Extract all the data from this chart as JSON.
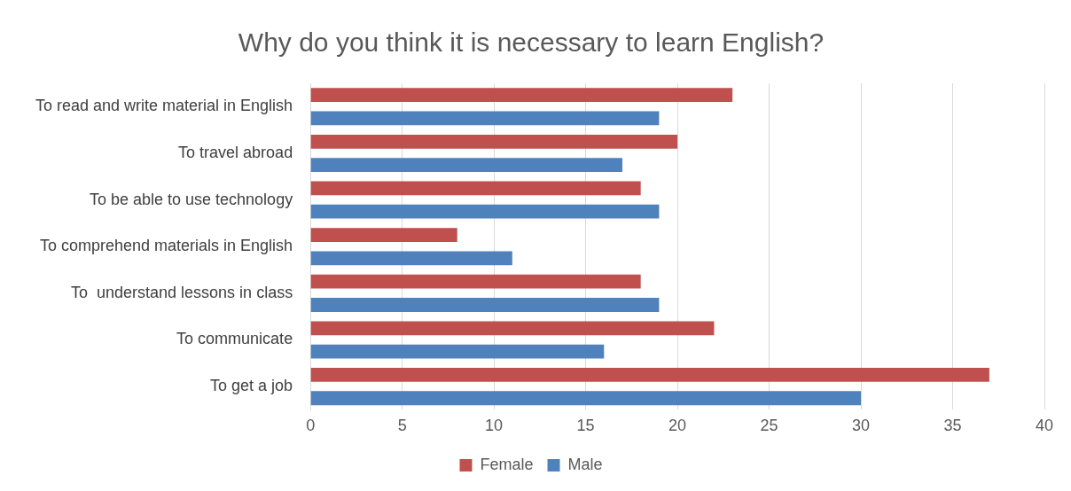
{
  "chart_data": {
    "type": "bar",
    "orientation": "horizontal",
    "title": "Why do you think it is necessary to learn English?",
    "categories": [
      "To read and write material in English",
      "To travel abroad",
      "To be able to use technology",
      "To comprehend materials in English",
      "To  understand lessons in class",
      "To communicate",
      "To get a job"
    ],
    "series": [
      {
        "name": "Female",
        "color": "#c0504d",
        "values": [
          23,
          20,
          18,
          8,
          18,
          22,
          37
        ]
      },
      {
        "name": "Male",
        "color": "#4f81bd",
        "values": [
          19,
          17,
          19,
          11,
          19,
          16,
          30
        ]
      }
    ],
    "xlim": [
      0,
      40
    ],
    "xticks": [
      0,
      5,
      10,
      15,
      20,
      25,
      30,
      35,
      40
    ],
    "grid": "x",
    "legend": "bottom"
  }
}
